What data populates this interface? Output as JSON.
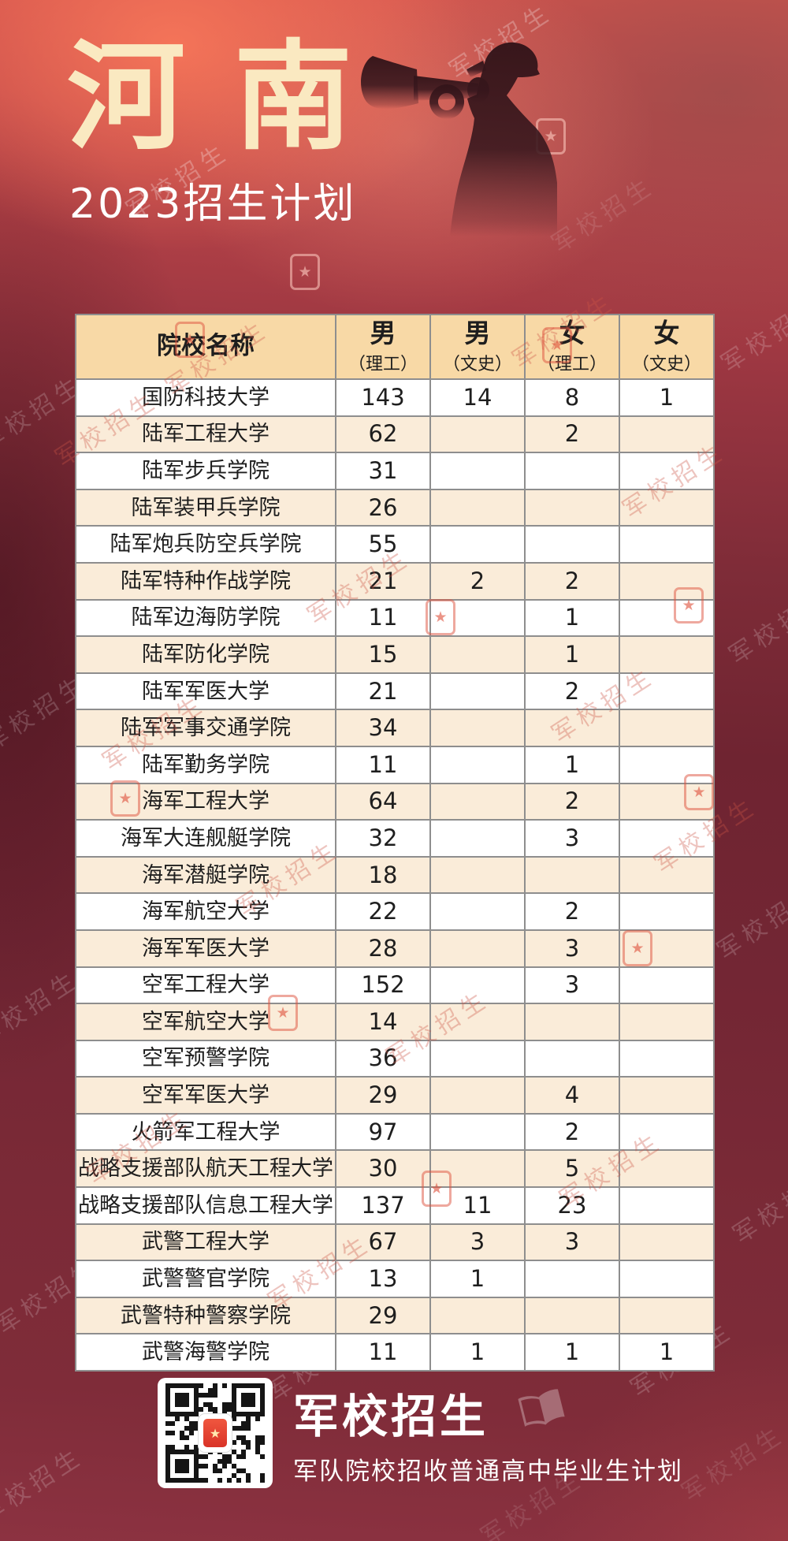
{
  "header": {
    "province": "河南",
    "subtitle": "2023招生计划"
  },
  "watermark": {
    "text": "军校招生"
  },
  "table": {
    "columns": [
      {
        "main": "院校名称",
        "sub": ""
      },
      {
        "main": "男",
        "sub": "（理工）"
      },
      {
        "main": "男",
        "sub": "（文史）"
      },
      {
        "main": "女",
        "sub": "（理工）"
      },
      {
        "main": "女",
        "sub": "（文史）"
      }
    ],
    "rows": [
      {
        "name": "国防科技大学",
        "values": [
          "143",
          "14",
          "8",
          "1"
        ]
      },
      {
        "name": "陆军工程大学",
        "values": [
          "62",
          "",
          "2",
          ""
        ]
      },
      {
        "name": "陆军步兵学院",
        "values": [
          "31",
          "",
          "",
          ""
        ]
      },
      {
        "name": "陆军装甲兵学院",
        "values": [
          "26",
          "",
          "",
          ""
        ]
      },
      {
        "name": "陆军炮兵防空兵学院",
        "values": [
          "55",
          "",
          "",
          ""
        ]
      },
      {
        "name": "陆军特种作战学院",
        "values": [
          "21",
          "2",
          "2",
          ""
        ]
      },
      {
        "name": "陆军边海防学院",
        "values": [
          "11",
          "",
          "1",
          ""
        ]
      },
      {
        "name": "陆军防化学院",
        "values": [
          "15",
          "",
          "1",
          ""
        ]
      },
      {
        "name": "陆军军医大学",
        "values": [
          "21",
          "",
          "2",
          ""
        ]
      },
      {
        "name": "陆军军事交通学院",
        "values": [
          "34",
          "",
          "",
          ""
        ]
      },
      {
        "name": "陆军勤务学院",
        "values": [
          "11",
          "",
          "1",
          ""
        ]
      },
      {
        "name": "海军工程大学",
        "values": [
          "64",
          "",
          "2",
          ""
        ]
      },
      {
        "name": "海军大连舰艇学院",
        "values": [
          "32",
          "",
          "3",
          ""
        ]
      },
      {
        "name": "海军潜艇学院",
        "values": [
          "18",
          "",
          "",
          ""
        ]
      },
      {
        "name": "海军航空大学",
        "values": [
          "22",
          "",
          "2",
          ""
        ]
      },
      {
        "name": "海军军医大学",
        "values": [
          "28",
          "",
          "3",
          ""
        ]
      },
      {
        "name": "空军工程大学",
        "values": [
          "152",
          "",
          "3",
          ""
        ]
      },
      {
        "name": "空军航空大学",
        "values": [
          "14",
          "",
          "",
          ""
        ]
      },
      {
        "name": "空军预警学院",
        "values": [
          "36",
          "",
          "",
          ""
        ]
      },
      {
        "name": "空军军医大学",
        "values": [
          "29",
          "",
          "4",
          ""
        ]
      },
      {
        "name": "火箭军工程大学",
        "values": [
          "97",
          "",
          "2",
          ""
        ]
      },
      {
        "name": "战略支援部队航天工程大学",
        "values": [
          "30",
          "",
          "5",
          ""
        ]
      },
      {
        "name": "战略支援部队信息工程大学",
        "values": [
          "137",
          "11",
          "23",
          ""
        ]
      },
      {
        "name": "武警工程大学",
        "values": [
          "67",
          "3",
          "3",
          ""
        ]
      },
      {
        "name": "武警警官学院",
        "values": [
          "13",
          "1",
          "",
          ""
        ]
      },
      {
        "name": "武警特种警察学院",
        "values": [
          "29",
          "",
          "",
          ""
        ]
      },
      {
        "name": "武警海警学院",
        "values": [
          "11",
          "1",
          "1",
          "1"
        ]
      }
    ]
  },
  "footer": {
    "brand": "军校招生",
    "caption": "军队院校招收普通高中毕业生计划"
  },
  "colors": {
    "background_red": "#7b2a37",
    "top_coral": "#d5544d",
    "header_cell": "#f8d9a6",
    "row_alt_cream": "#faecd9",
    "title_cream": "#fae9c1",
    "table_border": "#8e8e8e"
  }
}
